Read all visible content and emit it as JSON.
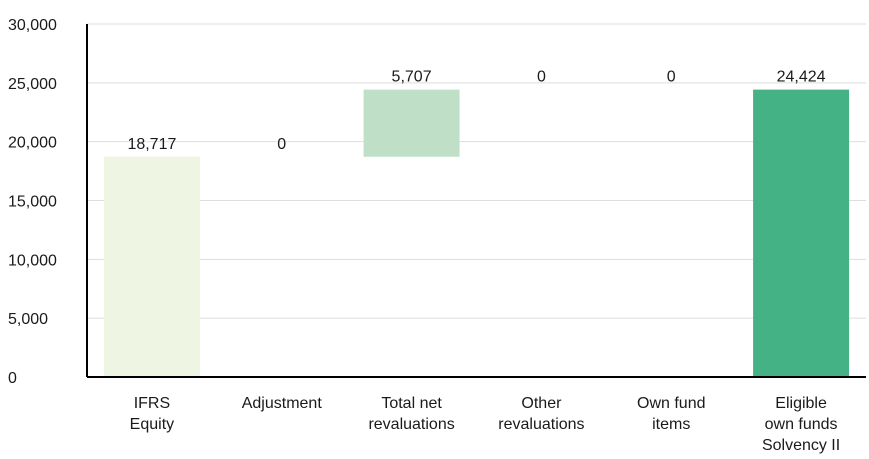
{
  "chart_data": {
    "type": "bar",
    "subtype": "waterfall",
    "title": "",
    "xlabel": "",
    "ylabel": "",
    "ylim": [
      0,
      30000
    ],
    "yticks": [
      0,
      5000,
      10000,
      15000,
      20000,
      25000,
      30000
    ],
    "ytick_labels": [
      "0",
      "5,000",
      "10,000",
      "15,000",
      "20,000",
      "25,000",
      "30,000"
    ],
    "grid": "horizontal",
    "legend": "none",
    "categories": [
      [
        "IFRS",
        "Equity"
      ],
      [
        "Adjustment"
      ],
      [
        "Total net",
        "revaluations"
      ],
      [
        "Other",
        "revaluations"
      ],
      [
        "Own fund",
        "items"
      ],
      [
        "Eligible",
        "own funds",
        "Solvency II"
      ]
    ],
    "bars": [
      {
        "base": 0,
        "value": 18717,
        "label": "18,717",
        "color": "#eef5e2"
      },
      {
        "base": 18717,
        "value": 0,
        "label": "0",
        "color": "#eef5e2"
      },
      {
        "base": 18717,
        "value": 5707,
        "label": "5,707",
        "color": "#bfe0c6"
      },
      {
        "base": 24424,
        "value": 0,
        "label": "0",
        "color": "#bfe0c6"
      },
      {
        "base": 24424,
        "value": 0,
        "label": "0",
        "color": "#bfe0c6"
      },
      {
        "base": 0,
        "value": 24424,
        "label": "24,424",
        "color": "#45b286"
      }
    ],
    "colors": {
      "grid": "#dedede",
      "axis": "#000000"
    }
  }
}
